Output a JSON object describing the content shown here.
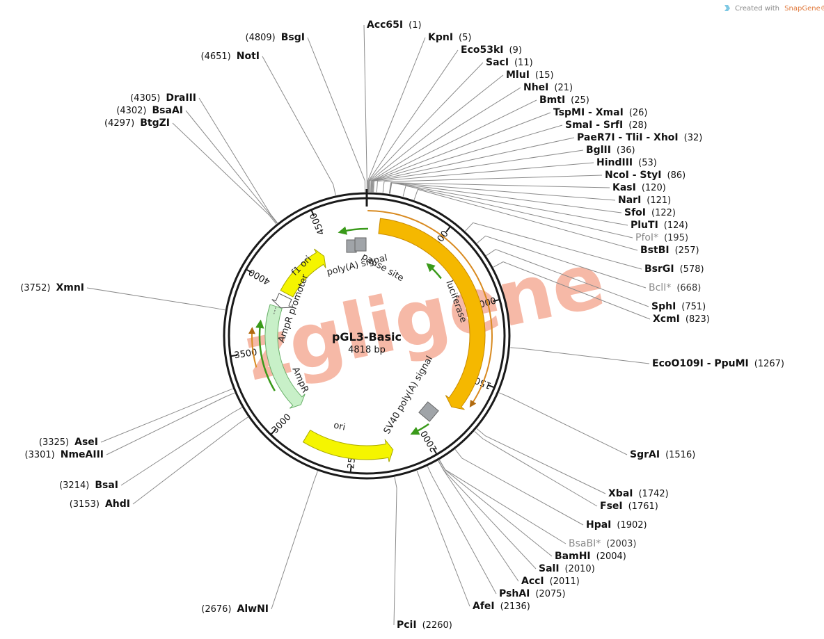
{
  "credit": {
    "prefix": "Created with",
    "brand": "SnapGene®"
  },
  "plasmid": {
    "name": "pGL3-Basic",
    "size_label": "4818 bp",
    "length": 4818
  },
  "watermark": {
    "text": "zgligene",
    "color": "#f08060"
  },
  "colors": {
    "backbone": "#1a1a1a",
    "luciferase": "#f5b800",
    "ampr": "#c8f0c8",
    "ori": "#f5f500",
    "f1_ori": "#f5f500",
    "promoter_arrow": "#ffffff",
    "terminator": "#a0a4a8",
    "primer": "#3a9a1a",
    "orf": "#d88a20"
  },
  "ticks": [
    {
      "label": "500",
      "pos": 500
    },
    {
      "label": "1000",
      "pos": 1000
    },
    {
      "label": "1500",
      "pos": 1500
    },
    {
      "label": "2000",
      "pos": 2000
    },
    {
      "label": "2500",
      "pos": 2500
    },
    {
      "label": "3000",
      "pos": 3000
    },
    {
      "label": "3500",
      "pos": 3500
    },
    {
      "label": "4000",
      "pos": 4000
    },
    {
      "label": "4500",
      "pos": 4500
    }
  ],
  "features": [
    {
      "id": "luciferase",
      "label": "luciferase",
      "start": 88,
      "end": 1740,
      "direction": "cw"
    },
    {
      "id": "sv40-polya",
      "label": "SV40 poly(A) signal",
      "start": 1772,
      "end": 1993
    },
    {
      "id": "ori",
      "label": "ori",
      "start": 2235,
      "end": 2823,
      "direction": "ccw"
    },
    {
      "id": "ampr",
      "label": "AmpR",
      "start": 2994,
      "end": 3854,
      "direction": "ccw"
    },
    {
      "id": "ampr-promoter",
      "label": "AmpR promoter",
      "start": 3855,
      "end": 3959,
      "direction": "ccw"
    },
    {
      "id": "f1-ori",
      "label": "f1 ori",
      "start": 3986,
      "end": 4441,
      "direction": "cw"
    },
    {
      "id": "polya-signal",
      "label": "poly(A) signal",
      "start": 4658,
      "end": 4706
    },
    {
      "id": "pause-site",
      "label": "pause site",
      "start": 4720,
      "end": 4810
    }
  ],
  "sites": [
    {
      "name": "Acc65I",
      "pos": 1
    },
    {
      "name": "KpnI",
      "pos": 5
    },
    {
      "name": "Eco53kI",
      "pos": 9
    },
    {
      "name": "SacI",
      "pos": 11
    },
    {
      "name": "MluI",
      "pos": 15
    },
    {
      "name": "NheI",
      "pos": 21
    },
    {
      "name": "BmtI",
      "pos": 25
    },
    {
      "name": "TspMI - XmaI",
      "pos": 26
    },
    {
      "name": "SmaI - SrfI",
      "pos": 28
    },
    {
      "name": "PaeR7I - TliI - XhoI",
      "pos": 32
    },
    {
      "name": "BglII",
      "pos": 36
    },
    {
      "name": "HindIII",
      "pos": 53
    },
    {
      "name": "NcoI - StyI",
      "pos": 86
    },
    {
      "name": "KasI",
      "pos": 120
    },
    {
      "name": "NarI",
      "pos": 121
    },
    {
      "name": "SfoI",
      "pos": 122
    },
    {
      "name": "PluTI",
      "pos": 124
    },
    {
      "name": "PfoI*",
      "pos": 195,
      "star": true
    },
    {
      "name": "BstBI",
      "pos": 257
    },
    {
      "name": "BsrGI",
      "pos": 578
    },
    {
      "name": "BclI*",
      "pos": 668,
      "star": true
    },
    {
      "name": "SphI",
      "pos": 751
    },
    {
      "name": "XcmI",
      "pos": 823
    },
    {
      "name": "EcoO109I - PpuMI",
      "pos": 1267
    },
    {
      "name": "SgrAI",
      "pos": 1516
    },
    {
      "name": "XbaI",
      "pos": 1742
    },
    {
      "name": "FseI",
      "pos": 1761
    },
    {
      "name": "HpaI",
      "pos": 1902
    },
    {
      "name": "BsaBI*",
      "pos": 2003,
      "star": true
    },
    {
      "name": "BamHI",
      "pos": 2004
    },
    {
      "name": "SalI",
      "pos": 2010
    },
    {
      "name": "AccI",
      "pos": 2011
    },
    {
      "name": "PshAI",
      "pos": 2075
    },
    {
      "name": "AfeI",
      "pos": 2136
    },
    {
      "name": "PciI",
      "pos": 2260
    },
    {
      "name": "AlwNI",
      "pos": 2676
    },
    {
      "name": "AhdI",
      "pos": 3153
    },
    {
      "name": "BsaI",
      "pos": 3214
    },
    {
      "name": "NmeAIII",
      "pos": 3301
    },
    {
      "name": "AseI",
      "pos": 3325
    },
    {
      "name": "XmnI",
      "pos": 3752
    },
    {
      "name": "BtgZI",
      "pos": 4297
    },
    {
      "name": "BsaAI",
      "pos": 4302
    },
    {
      "name": "DraIII",
      "pos": 4305
    },
    {
      "name": "NotI",
      "pos": 4651
    },
    {
      "name": "BsgI",
      "pos": 4809
    }
  ]
}
